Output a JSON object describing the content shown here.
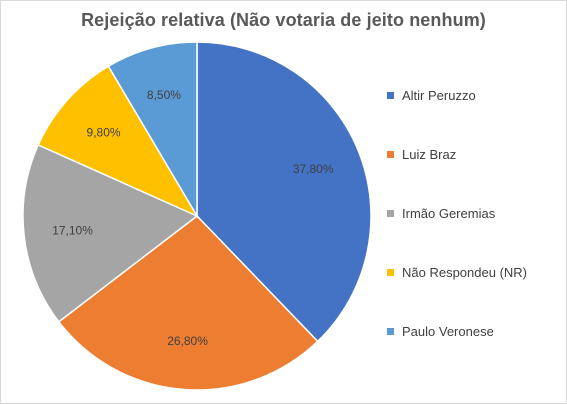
{
  "chart_data": {
    "type": "pie",
    "title": "Rejeição relativa (Não votaria de jeito nenhum)",
    "legend_position": "right",
    "slices": [
      {
        "name": "Altir Peruzzo",
        "value": 37.8,
        "label": "37,80%",
        "color": "#4472C4"
      },
      {
        "name": "Luiz Braz",
        "value": 26.8,
        "label": "26,80%",
        "color": "#ED7D31"
      },
      {
        "name": "Irmão Geremias",
        "value": 17.1,
        "label": "17,10%",
        "color": "#A5A5A5"
      },
      {
        "name": "Não Respondeu (NR)",
        "value": 9.8,
        "label": "9,80%",
        "color": "#FFC000"
      },
      {
        "name": "Paulo Veronese",
        "value": 8.5,
        "label": "8,50%",
        "color": "#5B9BD5"
      }
    ]
  }
}
